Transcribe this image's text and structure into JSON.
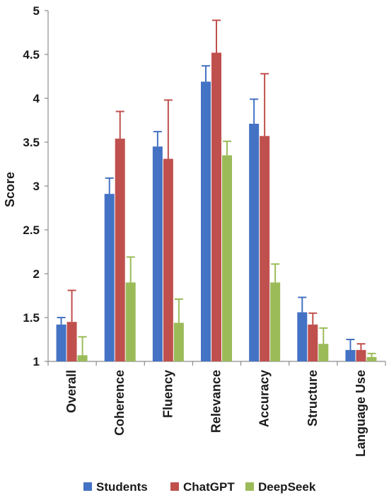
{
  "chart_data": {
    "type": "bar",
    "title": "",
    "xlabel": "",
    "ylabel": "Score",
    "ylim": [
      1,
      5
    ],
    "y_ticks": [
      "1",
      "1.5",
      "2",
      "2.5",
      "3",
      "3.5",
      "4",
      "4.5",
      "5"
    ],
    "grid": false,
    "legend_position": "bottom",
    "error_bars": true,
    "categories": [
      "Overall",
      "Coherence",
      "Fluency",
      "Relevance",
      "Accuracy",
      "Structure",
      "Language Use"
    ],
    "series": [
      {
        "name": "Students",
        "color": "#4472c4",
        "values": [
          1.42,
          2.91,
          3.45,
          4.19,
          3.71,
          1.56,
          1.13
        ],
        "error": [
          0.08,
          0.18,
          0.17,
          0.18,
          0.28,
          0.17,
          0.12
        ]
      },
      {
        "name": "ChatGPT",
        "color": "#c0504d",
        "values": [
          1.45,
          3.54,
          3.31,
          4.52,
          3.57,
          1.42,
          1.13
        ],
        "error": [
          0.36,
          0.31,
          0.67,
          0.37,
          0.71,
          0.13,
          0.07
        ]
      },
      {
        "name": "DeepSeek",
        "color": "#9bbb59",
        "values": [
          1.07,
          1.9,
          1.44,
          3.35,
          1.9,
          1.2,
          1.05
        ],
        "error": [
          0.21,
          0.29,
          0.27,
          0.16,
          0.21,
          0.18,
          0.04
        ]
      }
    ]
  }
}
